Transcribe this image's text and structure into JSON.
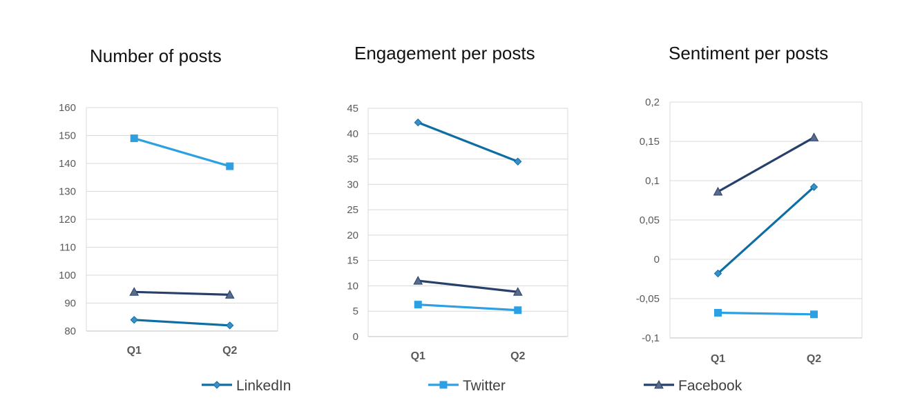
{
  "colors": {
    "LinkedIn": "#0e6ea3",
    "Twitter": "#2d9fe3",
    "Facebook": "#26406b",
    "grid": "#d9d9d9",
    "axis_text": "#595959"
  },
  "legend": {
    "items": [
      {
        "name": "LinkedIn",
        "marker": "diamond"
      },
      {
        "name": "Twitter",
        "marker": "square"
      },
      {
        "name": "Facebook",
        "marker": "triangle"
      }
    ]
  },
  "chart_data": [
    {
      "type": "line",
      "title": "Number of posts",
      "categories": [
        "Q1",
        "Q2"
      ],
      "ylim": [
        80,
        160
      ],
      "yticks": [
        "160",
        "150",
        "140",
        "130",
        "120",
        "110",
        "100",
        "90",
        "80"
      ],
      "grid": true,
      "series": [
        {
          "name": "LinkedIn",
          "values": [
            84,
            82
          ]
        },
        {
          "name": "Twitter",
          "values": [
            149,
            139
          ]
        },
        {
          "name": "Facebook",
          "values": [
            94,
            93
          ]
        }
      ]
    },
    {
      "type": "line",
      "title": "Engagement per posts",
      "categories": [
        "Q1",
        "Q2"
      ],
      "ylim": [
        0,
        45
      ],
      "yticks": [
        "45",
        "40",
        "35",
        "30",
        "25",
        "20",
        "15",
        "10",
        "5",
        "0"
      ],
      "grid": true,
      "series": [
        {
          "name": "LinkedIn",
          "values": [
            42.2,
            34.5
          ]
        },
        {
          "name": "Twitter",
          "values": [
            6.3,
            5.2
          ]
        },
        {
          "name": "Facebook",
          "values": [
            11,
            8.8
          ]
        }
      ]
    },
    {
      "type": "line",
      "title": "Sentiment per posts",
      "categories": [
        "Q1",
        "Q2"
      ],
      "ylim": [
        -0.1,
        0.2
      ],
      "yticks": [
        "0,2",
        "0,15",
        "0,1",
        "0,05",
        "0",
        "-0,05",
        "-0,1"
      ],
      "grid": true,
      "series": [
        {
          "name": "LinkedIn",
          "values": [
            -0.018,
            0.092
          ]
        },
        {
          "name": "Twitter",
          "values": [
            -0.068,
            -0.07
          ]
        },
        {
          "name": "Facebook",
          "values": [
            0.086,
            0.155
          ]
        }
      ]
    }
  ]
}
